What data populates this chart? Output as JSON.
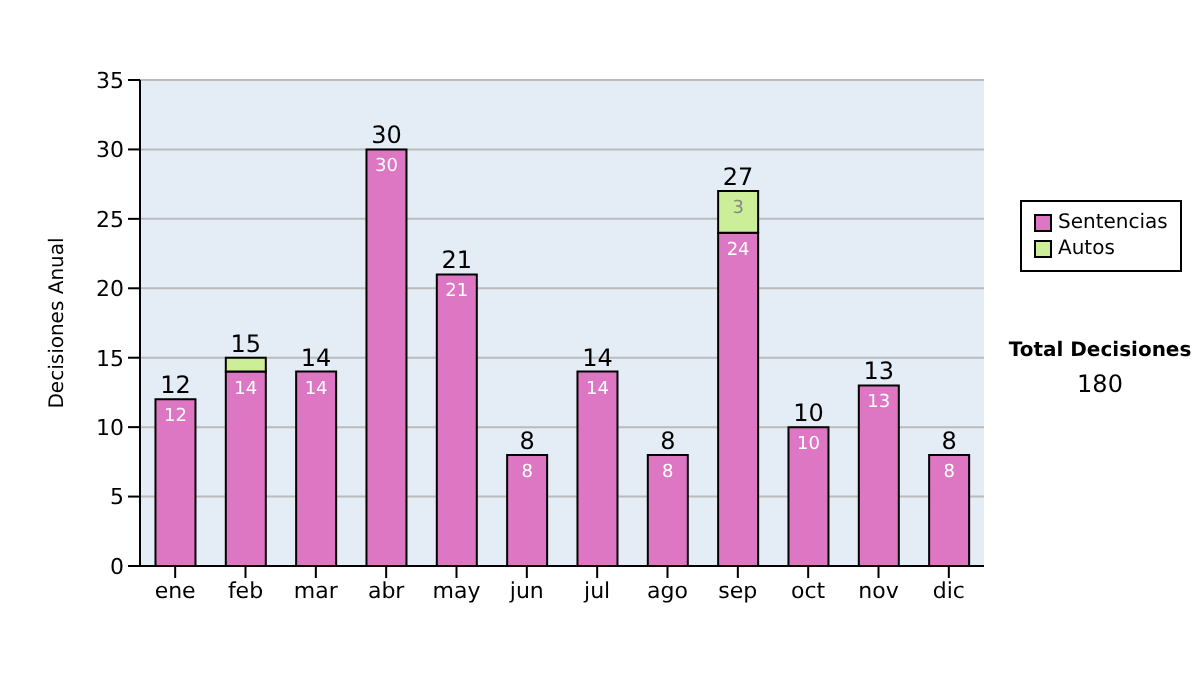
{
  "chart_data": {
    "type": "bar",
    "ylabel": "Decisiones Anual",
    "categories": [
      "ene",
      "feb",
      "mar",
      "abr",
      "may",
      "jun",
      "jul",
      "ago",
      "sep",
      "oct",
      "nov",
      "dic"
    ],
    "series": [
      {
        "name": "Sentencias",
        "color": "#dd77c4",
        "values": [
          12,
          14,
          14,
          30,
          21,
          8,
          14,
          8,
          24,
          10,
          13,
          8
        ],
        "value_labels": [
          "12",
          "14",
          "14",
          "30",
          "21",
          "8",
          "14",
          "8",
          "24",
          "10",
          "13",
          "8"
        ]
      },
      {
        "name": "Autos",
        "color": "#ccee99",
        "values": [
          null,
          1,
          null,
          null,
          null,
          null,
          null,
          null,
          3,
          null,
          null,
          null
        ],
        "value_labels": [
          null,
          null,
          null,
          null,
          null,
          null,
          null,
          null,
          "3",
          null,
          null,
          null
        ]
      }
    ],
    "stacked": true,
    "totals": [
      "12",
      "15",
      "14",
      "30",
      "21",
      "8",
      "14",
      "8",
      "27",
      "10",
      "13",
      "8"
    ],
    "ylim": [
      0,
      35
    ],
    "yticks": [
      0,
      5,
      10,
      15,
      20,
      25,
      30,
      35
    ],
    "grid": "y",
    "legend": "right",
    "annotations": [
      "Total Decisiones",
      "180"
    ]
  }
}
